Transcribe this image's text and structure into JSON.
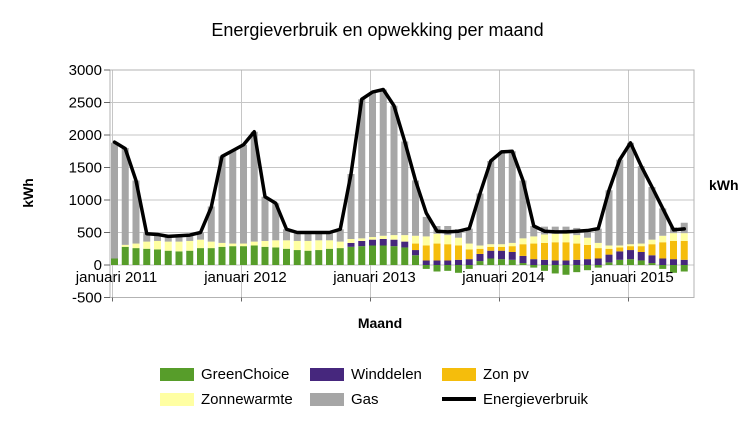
{
  "title": "Energieverbruik en opwekking per maand",
  "axes": {
    "y_left_label": "kWh",
    "y_right_label": "kWh",
    "x_label": "Maand"
  },
  "legend": [
    {
      "label": "GreenChoice",
      "color": "#579d2a",
      "type": "bar"
    },
    {
      "label": "Winddelen",
      "color": "#46277d",
      "type": "bar"
    },
    {
      "label": "Zon pv",
      "color": "#f5bd0c",
      "type": "bar"
    },
    {
      "label": "Zonnewarmte",
      "color": "#ffffa3",
      "type": "bar"
    },
    {
      "label": "Gas",
      "color": "#a6a6a6",
      "type": "bar"
    },
    {
      "label": "Energieverbruik",
      "color": "#000000",
      "type": "line"
    }
  ],
  "chart_data": {
    "type": "combo-stacked-bar-line",
    "unit": "kWh",
    "ylim": [
      -500,
      3000
    ],
    "y_ticks": [
      3000,
      2500,
      2000,
      1500,
      1000,
      500,
      0,
      -500
    ],
    "grid": true,
    "legend_position": "bottom",
    "x_tick_labels": [
      {
        "index": 0,
        "label": "januari 2011"
      },
      {
        "index": 12,
        "label": "januari 2012"
      },
      {
        "index": 24,
        "label": "januari 2013"
      },
      {
        "index": 36,
        "label": "januari 2014"
      },
      {
        "index": 48,
        "label": "januari 2015"
      }
    ],
    "months": [
      "jan 2011",
      "feb 2011",
      "mrt 2011",
      "apr 2011",
      "mei 2011",
      "jun 2011",
      "jul 2011",
      "aug 2011",
      "sep 2011",
      "okt 2011",
      "nov 2011",
      "dec 2011",
      "jan 2012",
      "feb 2012",
      "mrt 2012",
      "apr 2012",
      "mei 2012",
      "jun 2012",
      "jul 2012",
      "aug 2012",
      "sep 2012",
      "okt 2012",
      "nov 2012",
      "dec 2012",
      "jan 2013",
      "feb 2013",
      "mrt 2013",
      "apr 2013",
      "mei 2013",
      "jun 2013",
      "jul 2013",
      "aug 2013",
      "sep 2013",
      "okt 2013",
      "nov 2013",
      "dec 2013",
      "jan 2014",
      "feb 2014",
      "mrt 2014",
      "apr 2014",
      "mei 2014",
      "jun 2014",
      "jul 2014",
      "aug 2014",
      "sep 2014",
      "okt 2014",
      "nov 2014",
      "dec 2014",
      "jan 2015",
      "feb 2015",
      "mrt 2015",
      "apr 2015",
      "mei 2015",
      "jun 2015"
    ],
    "bar_series": [
      {
        "name": "GreenChoice",
        "color": "#579d2a",
        "values": [
          100,
          280,
          260,
          250,
          240,
          220,
          210,
          220,
          260,
          260,
          280,
          290,
          290,
          300,
          280,
          270,
          250,
          230,
          220,
          230,
          250,
          260,
          280,
          290,
          300,
          300,
          290,
          270,
          150,
          -60,
          -100,
          -90,
          -120,
          -60,
          60,
          100,
          90,
          80,
          30,
          -40,
          -90,
          -130,
          -150,
          -110,
          -80,
          -40,
          40,
          80,
          90,
          70,
          30,
          -60,
          -120,
          -100
        ]
      },
      {
        "name": "Winddelen",
        "color": "#46277d",
        "values": [
          0,
          0,
          0,
          0,
          0,
          0,
          0,
          0,
          0,
          0,
          0,
          0,
          0,
          0,
          0,
          0,
          0,
          0,
          0,
          0,
          0,
          0,
          60,
          80,
          90,
          100,
          100,
          90,
          80,
          70,
          70,
          70,
          80,
          90,
          110,
          120,
          130,
          120,
          110,
          90,
          80,
          70,
          70,
          80,
          90,
          100,
          120,
          130,
          140,
          130,
          120,
          100,
          90,
          80
        ]
      },
      {
        "name": "Zon pv",
        "color": "#f5bd0c",
        "values": [
          0,
          0,
          0,
          0,
          0,
          0,
          0,
          0,
          0,
          0,
          0,
          0,
          0,
          0,
          0,
          0,
          0,
          0,
          0,
          0,
          0,
          0,
          0,
          0,
          0,
          0,
          0,
          0,
          100,
          230,
          260,
          250,
          220,
          150,
          80,
          60,
          60,
          90,
          180,
          240,
          260,
          280,
          280,
          250,
          220,
          160,
          90,
          60,
          60,
          90,
          170,
          250,
          280,
          290
        ]
      },
      {
        "name": "Zonnewarmte",
        "color": "#ffffa3",
        "values": [
          0,
          30,
          70,
          110,
          130,
          140,
          150,
          150,
          130,
          100,
          60,
          40,
          40,
          60,
          90,
          110,
          130,
          140,
          150,
          150,
          130,
          100,
          60,
          40,
          40,
          50,
          70,
          100,
          120,
          140,
          150,
          140,
          120,
          90,
          50,
          40,
          40,
          50,
          90,
          110,
          130,
          130,
          140,
          130,
          110,
          80,
          50,
          30,
          30,
          40,
          70,
          100,
          120,
          120
        ]
      },
      {
        "name": "Gas",
        "color": "#a6a6a6",
        "values": [
          1780,
          1490,
          970,
          130,
          110,
          90,
          90,
          100,
          110,
          540,
          1330,
          1430,
          1520,
          1690,
          680,
          570,
          170,
          130,
          130,
          120,
          120,
          190,
          1000,
          2140,
          2230,
          2250,
          1990,
          1440,
          850,
          300,
          120,
          140,
          130,
          230,
          800,
          1280,
          1420,
          1410,
          890,
          160,
          120,
          110,
          100,
          110,
          130,
          220,
          850,
          1320,
          1560,
          1190,
          810,
          420,
          90,
          160
        ]
      }
    ],
    "line_series": {
      "name": "Energieverbruik",
      "color": "#000000",
      "values": [
        1890,
        1790,
        1300,
        480,
        470,
        440,
        450,
        460,
        500,
        890,
        1670,
        1760,
        1850,
        2050,
        1050,
        950,
        550,
        500,
        500,
        500,
        500,
        550,
        1400,
        2550,
        2660,
        2700,
        2450,
        1900,
        1300,
        800,
        520,
        510,
        520,
        560,
        1100,
        1600,
        1740,
        1750,
        1300,
        600,
        520,
        510,
        510,
        520,
        530,
        560,
        1150,
        1620,
        1880,
        1520,
        1200,
        870,
        540,
        555
      ]
    }
  }
}
